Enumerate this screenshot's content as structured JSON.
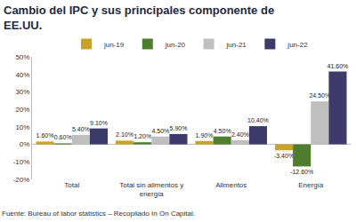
{
  "chart_data": {
    "type": "bar",
    "title": "Cambio del IPC y sus principales componente de EE.UU.",
    "source": "Fuente: Bureau of labor statistics – Recopilado In On Capital.",
    "categories": [
      "Total",
      "Total sin alimentos y energía",
      "Alimentos",
      "Energía"
    ],
    "series": [
      {
        "name": "jun-19",
        "color": "#c9a227",
        "values": [
          1.6,
          2.1,
          1.9,
          -3.4
        ],
        "value_labels": [
          "1.60%",
          "2.10%",
          "1.90%",
          "-3.40%"
        ]
      },
      {
        "name": "jun-20",
        "color": "#4e7d2e",
        "values": [
          0.6,
          1.2,
          4.5,
          -12.6
        ],
        "value_labels": [
          "0.60%",
          "1.20%",
          "4.50%",
          "-12.60%"
        ]
      },
      {
        "name": "jun-21",
        "color": "#bfbfbf",
        "values": [
          5.4,
          4.5,
          2.4,
          24.5
        ],
        "value_labels": [
          "5.40%",
          "4.50%",
          "2.40%",
          "24.50%"
        ]
      },
      {
        "name": "jun-22",
        "color": "#3d3b6b",
        "values": [
          9.1,
          5.9,
          10.4,
          41.6
        ],
        "value_labels": [
          "9.10%",
          "5.90%",
          "10.40%",
          "41.60%"
        ]
      }
    ],
    "ylim": [
      -20,
      50
    ],
    "yticks": [
      {
        "value": -20,
        "label": "-20%"
      },
      {
        "value": -10,
        "label": "-10%"
      },
      {
        "value": 0,
        "label": "0%"
      },
      {
        "value": 10,
        "label": "10%"
      },
      {
        "value": 20,
        "label": "20%"
      },
      {
        "value": 30,
        "label": "30%"
      },
      {
        "value": 40,
        "label": "40%"
      },
      {
        "value": 50,
        "label": "50%"
      }
    ],
    "grid": false,
    "legend": "top",
    "data_labels": true
  }
}
